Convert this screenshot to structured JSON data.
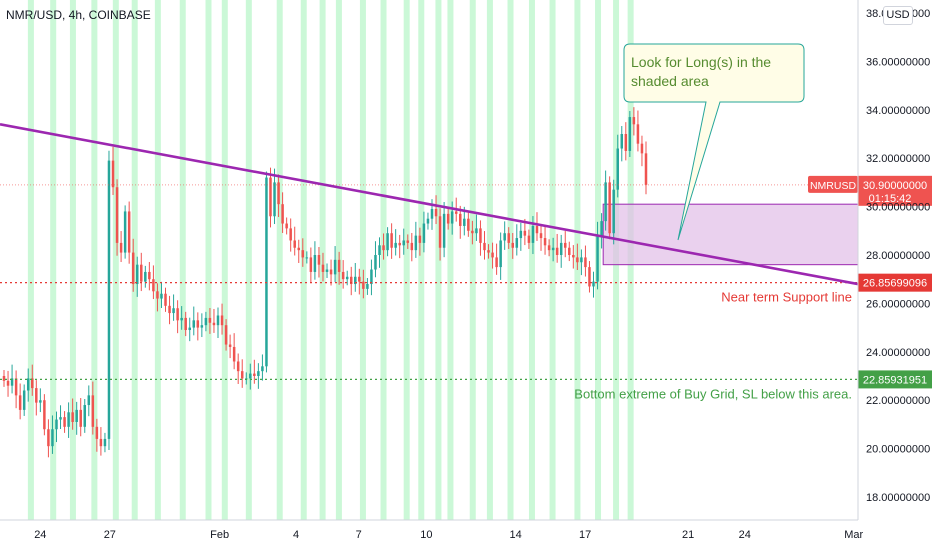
{
  "header": {
    "symbol_title": "NMR/USD, 4h, COINBASE",
    "currency_button": "USD"
  },
  "colors": {
    "up": "#26a69a",
    "down": "#ef5350",
    "trendline": "#9c27b0",
    "zone_fill": "#e1bee7",
    "highlight": "#b9f6ca",
    "support": "#e53935",
    "bottom": "#43a047",
    "callout_fill": "#fffde7",
    "callout_border": "#26a69a"
  },
  "chart_data": {
    "type": "candlestick",
    "symbol": "NMRUSD",
    "y_axis": {
      "min": 17,
      "max": 38,
      "ticks": [
        "38.00000000",
        "36.00000000",
        "34.00000000",
        "32.00000000",
        "30.00000000",
        "28.00000000",
        "26.00000000",
        "24.00000000",
        "22.00000000",
        "20.00000000",
        "18.00000000"
      ],
      "tick_values": [
        38,
        36,
        34,
        32,
        30,
        28,
        26,
        24,
        22,
        20,
        18
      ]
    },
    "x_axis": {
      "labels": [
        "24",
        "27",
        "Feb",
        "4",
        "7",
        "10",
        "14",
        "17",
        "21",
        "24",
        "Mar"
      ],
      "label_positions": [
        0.047,
        0.128,
        0.256,
        0.345,
        0.418,
        0.497,
        0.601,
        0.682,
        0.802,
        0.868,
        0.995
      ]
    },
    "current_price": {
      "symbol_label": "NMRUSD",
      "value": "30.90000000",
      "value_num": 30.9,
      "countdown": "01:15:42"
    },
    "levels": [
      {
        "name": "support",
        "value": "26.85699096",
        "value_num": 26.857,
        "label": "Near term Support line"
      },
      {
        "name": "bottom",
        "value": "22.85931951",
        "value_num": 22.859,
        "label": "Bottom extreme of Buy Grid, SL below this area."
      }
    ],
    "trendline": {
      "start": [
        0.0,
        33.4
      ],
      "end": [
        1.0,
        26.8
      ]
    },
    "zone": {
      "x_start": 0.703,
      "x_end": 1.0,
      "y_low": 27.6,
      "y_high": 30.1
    },
    "callout": {
      "line1": "Look for Long(s) in the",
      "line2": "shaded area"
    },
    "highlight_bands_x": [
      0.036,
      0.062,
      0.085,
      0.11,
      0.135,
      0.157,
      0.184,
      0.213,
      0.243,
      0.262,
      0.29,
      0.326,
      0.354,
      0.376,
      0.395,
      0.423,
      0.447,
      0.474,
      0.491,
      0.511,
      0.525,
      0.551,
      0.571,
      0.595,
      0.62,
      0.644,
      0.673,
      0.697,
      0.718,
      0.735
    ],
    "candles_close": [
      22.8,
      22.6,
      22.9,
      22.2,
      21.6,
      22.4,
      22.9,
      22.5,
      21.9,
      22.0,
      20.8,
      20.1,
      20.8,
      21.2,
      21.3,
      20.9,
      21.5,
      21.1,
      21.6,
      20.9,
      21.8,
      22.2,
      20.9,
      20.4,
      20.1,
      20.4,
      31.9,
      30.8,
      28.5,
      28.1,
      29.8,
      28.1,
      26.8,
      27.6,
      26.9,
      27.3,
      27.0,
      26.5,
      26.2,
      26.4,
      25.9,
      25.6,
      25.8,
      25.3,
      25.4,
      24.9,
      25.0,
      25.3,
      25.0,
      25.1,
      25.4,
      25.2,
      25.1,
      25.5,
      25.1,
      24.3,
      24.2,
      23.6,
      23.2,
      22.9,
      22.9,
      23.1,
      23.0,
      23.2,
      23.4,
      31.2,
      29.6,
      31.0,
      30.1,
      29.3,
      29.1,
      28.6,
      28.3,
      28.2,
      27.9,
      27.9,
      27.3,
      28.0,
      27.6,
      27.3,
      27.4,
      27.2,
      27.8,
      27.3,
      27.0,
      27.1,
      26.8,
      27.1,
      26.9,
      26.6,
      26.8,
      27.4,
      28.0,
      28.4,
      28.2,
      28.9,
      28.3,
      28.5,
      28.4,
      28.6,
      28.5,
      28.2,
      28.8,
      28.5,
      29.3,
      29.5,
      29.9,
      29.6,
      28.3,
      29.7,
      29.3,
      29.8,
      29.7,
      29.2,
      29.5,
      29.0,
      28.9,
      29.1,
      28.5,
      28.2,
      28.1,
      27.9,
      27.5,
      28.6,
      28.9,
      28.5,
      28.3,
      28.7,
      29.0,
      28.8,
      28.5,
      29.2,
      28.9,
      28.7,
      28.4,
      28.2,
      28.3,
      28.0,
      28.5,
      28.3,
      28.0,
      27.9,
      27.7,
      27.9,
      27.5,
      26.7,
      26.9,
      28.8,
      29.4,
      31.0,
      28.9,
      30.7,
      32.4,
      33.0,
      32.3,
      33.7,
      33.4,
      32.6,
      32.2,
      30.9
    ]
  }
}
